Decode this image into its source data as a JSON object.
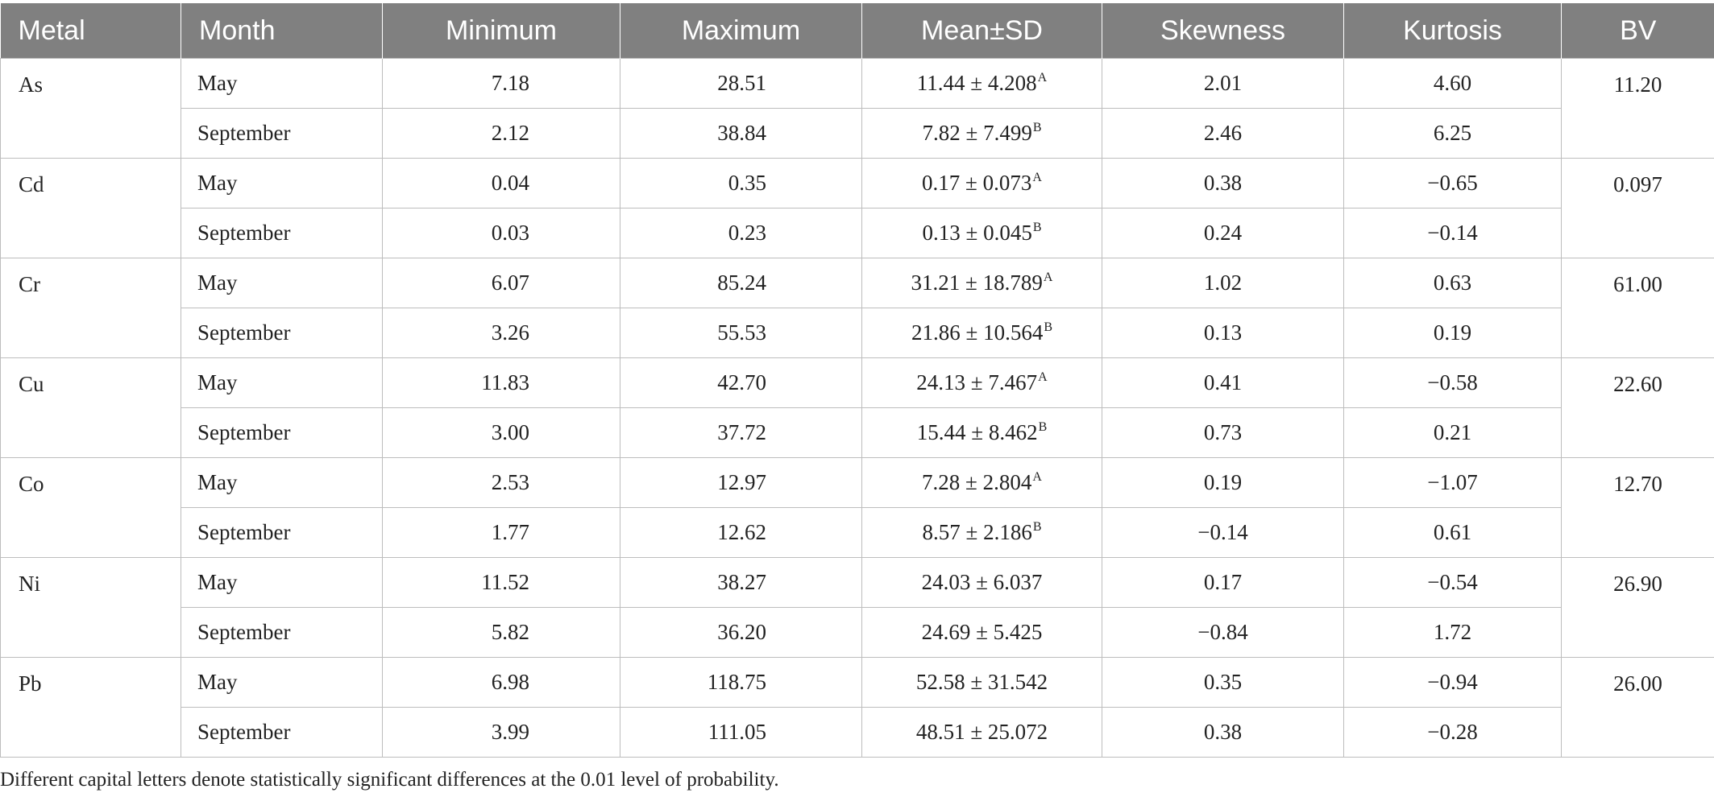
{
  "headers": {
    "metal": "Metal",
    "month": "Month",
    "minimum": "Minimum",
    "maximum": "Maximum",
    "mean_sd": "Mean±SD",
    "skewness": "Skewness",
    "kurtosis": "Kurtosis",
    "bv": "BV"
  },
  "groups": [
    {
      "metal": "As",
      "bv": "11.20",
      "rows": [
        {
          "month": "May",
          "min": "7.18",
          "max": "28.51",
          "mean": "11.44 ± 4.208",
          "sup": "A",
          "skew": "2.01",
          "kurt": "4.60"
        },
        {
          "month": "September",
          "min": "2.12",
          "max": "38.84",
          "mean": "7.82 ± 7.499",
          "sup": "B",
          "skew": "2.46",
          "kurt": "6.25"
        }
      ]
    },
    {
      "metal": "Cd",
      "bv": "0.097",
      "rows": [
        {
          "month": "May",
          "min": "0.04",
          "max": "0.35",
          "mean": "0.17 ± 0.073",
          "sup": "A",
          "skew": "0.38",
          "kurt": "−0.65"
        },
        {
          "month": "September",
          "min": "0.03",
          "max": "0.23",
          "mean": "0.13 ± 0.045",
          "sup": "B",
          "skew": "0.24",
          "kurt": "−0.14"
        }
      ]
    },
    {
      "metal": "Cr",
      "bv": "61.00",
      "rows": [
        {
          "month": "May",
          "min": "6.07",
          "max": "85.24",
          "mean": "31.21 ± 18.789",
          "sup": "A",
          "skew": "1.02",
          "kurt": "0.63"
        },
        {
          "month": "September",
          "min": "3.26",
          "max": "55.53",
          "mean": "21.86 ± 10.564",
          "sup": "B",
          "skew": "0.13",
          "kurt": "0.19"
        }
      ]
    },
    {
      "metal": "Cu",
      "bv": "22.60",
      "rows": [
        {
          "month": "May",
          "min": "11.83",
          "max": "42.70",
          "mean": "24.13 ± 7.467",
          "sup": "A",
          "skew": "0.41",
          "kurt": "−0.58"
        },
        {
          "month": "September",
          "min": "3.00",
          "max": "37.72",
          "mean": "15.44 ± 8.462",
          "sup": "B",
          "skew": "0.73",
          "kurt": "0.21"
        }
      ]
    },
    {
      "metal": "Co",
      "bv": "12.70",
      "rows": [
        {
          "month": "May",
          "min": "2.53",
          "max": "12.97",
          "mean": "7.28 ± 2.804",
          "sup": "A",
          "skew": "0.19",
          "kurt": "−1.07"
        },
        {
          "month": "September",
          "min": "1.77",
          "max": "12.62",
          "mean": "8.57 ± 2.186",
          "sup": "B",
          "skew": "−0.14",
          "kurt": "0.61"
        }
      ]
    },
    {
      "metal": "Ni",
      "bv": "26.90",
      "rows": [
        {
          "month": "May",
          "min": "11.52",
          "max": "38.27",
          "mean": "24.03 ± 6.037",
          "sup": "",
          "skew": "0.17",
          "kurt": "−0.54"
        },
        {
          "month": "September",
          "min": "5.82",
          "max": "36.20",
          "mean": "24.69 ± 5.425",
          "sup": "",
          "skew": "−0.84",
          "kurt": "1.72"
        }
      ]
    },
    {
      "metal": "Pb",
      "bv": "26.00",
      "rows": [
        {
          "month": "May",
          "min": "6.98",
          "max": "118.75",
          "mean": "52.58 ± 31.542",
          "sup": "",
          "skew": "0.35",
          "kurt": "−0.94"
        },
        {
          "month": "September",
          "min": "3.99",
          "max": "111.05",
          "mean": "48.51 ± 25.072",
          "sup": "",
          "skew": "0.38",
          "kurt": "−0.28"
        }
      ]
    }
  ],
  "footnote": "Different capital letters denote statistically significant differences at the 0.01 level of probability."
}
